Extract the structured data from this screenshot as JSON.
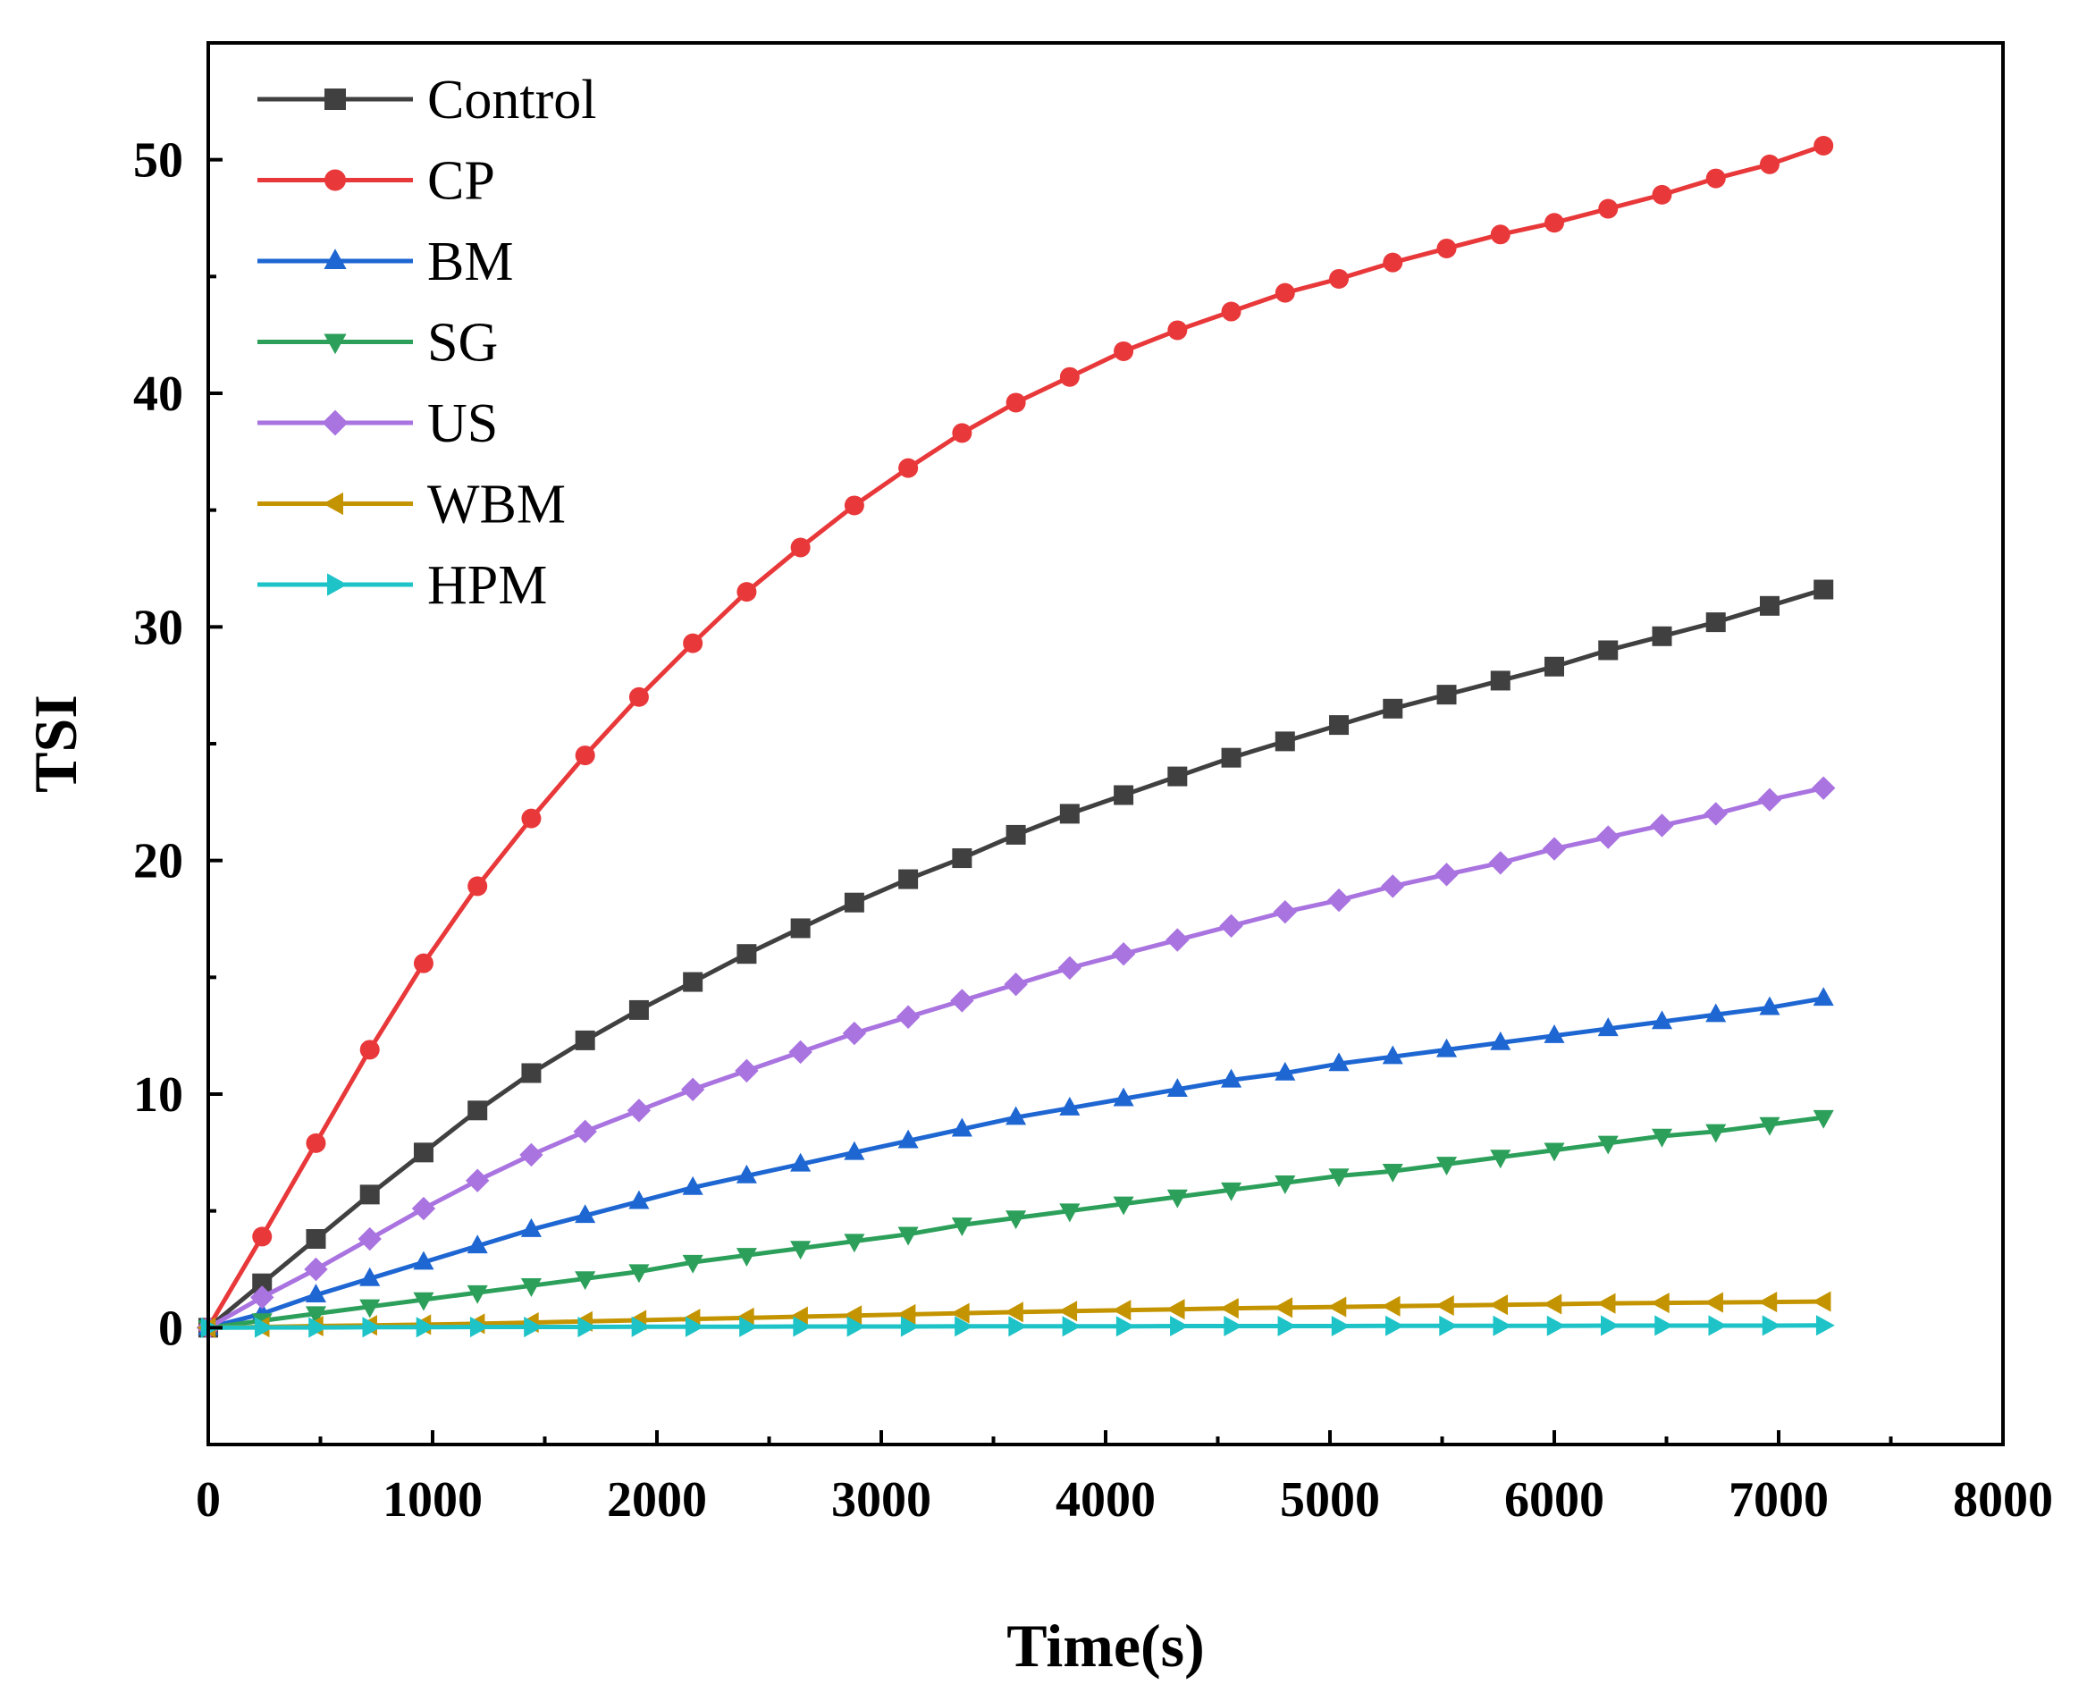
{
  "chart_data": {
    "type": "line",
    "title": "",
    "xlabel": "Time(s)",
    "ylabel": "TSI",
    "xlim": [
      0,
      8000
    ],
    "ylim": [
      -5,
      55
    ],
    "xticks": [
      0,
      1000,
      2000,
      3000,
      4000,
      5000,
      6000,
      7000,
      8000
    ],
    "yticks": [
      0,
      10,
      20,
      30,
      40,
      50
    ],
    "grid": false,
    "legend_position": "top-left",
    "x": [
      0,
      240,
      480,
      720,
      960,
      1200,
      1440,
      1680,
      1920,
      2160,
      2400,
      2640,
      2880,
      3120,
      3360,
      3600,
      3840,
      4080,
      4320,
      4560,
      4800,
      5040,
      5280,
      5520,
      5760,
      6000,
      6240,
      6480,
      6720,
      6960,
      7200
    ],
    "series": [
      {
        "name": "Control",
        "color": "#404040",
        "marker": "square",
        "values": [
          0,
          1.9,
          3.8,
          5.7,
          7.5,
          9.3,
          10.9,
          12.3,
          13.6,
          14.8,
          16.0,
          17.1,
          18.2,
          19.2,
          20.1,
          21.1,
          22.0,
          22.8,
          23.6,
          24.4,
          25.1,
          25.8,
          26.5,
          27.1,
          27.7,
          28.3,
          29.0,
          29.6,
          30.2,
          30.9,
          31.6
        ]
      },
      {
        "name": "CP",
        "color": "#e8383a",
        "marker": "circle",
        "values": [
          0,
          3.9,
          7.9,
          11.9,
          15.6,
          18.9,
          21.8,
          24.5,
          27.0,
          29.3,
          31.5,
          33.4,
          35.2,
          36.8,
          38.3,
          39.6,
          40.7,
          41.8,
          42.7,
          43.5,
          44.3,
          44.9,
          45.6,
          46.2,
          46.8,
          47.3,
          47.9,
          48.5,
          49.2,
          49.8,
          50.6
        ]
      },
      {
        "name": "BM",
        "color": "#1e66d2",
        "marker": "triangle-up",
        "values": [
          0,
          0.6,
          1.4,
          2.1,
          2.8,
          3.5,
          4.2,
          4.8,
          5.4,
          6.0,
          6.5,
          7.0,
          7.5,
          8.0,
          8.5,
          9.0,
          9.4,
          9.8,
          10.2,
          10.6,
          10.9,
          11.3,
          11.6,
          11.9,
          12.2,
          12.5,
          12.8,
          13.1,
          13.4,
          13.7,
          14.1
        ]
      },
      {
        "name": "SG",
        "color": "#2ca05a",
        "marker": "triangle-down",
        "values": [
          0,
          0.3,
          0.6,
          0.9,
          1.2,
          1.5,
          1.8,
          2.1,
          2.4,
          2.8,
          3.1,
          3.4,
          3.7,
          4.0,
          4.4,
          4.7,
          5.0,
          5.3,
          5.6,
          5.9,
          6.2,
          6.5,
          6.7,
          7.0,
          7.3,
          7.6,
          7.9,
          8.2,
          8.4,
          8.7,
          9.0
        ]
      },
      {
        "name": "US",
        "color": "#a973e0",
        "marker": "diamond",
        "values": [
          0,
          1.3,
          2.5,
          3.8,
          5.1,
          6.3,
          7.4,
          8.4,
          9.3,
          10.2,
          11.0,
          11.8,
          12.6,
          13.3,
          14.0,
          14.7,
          15.4,
          16.0,
          16.6,
          17.2,
          17.8,
          18.3,
          18.9,
          19.4,
          19.9,
          20.5,
          21.0,
          21.5,
          22.0,
          22.6,
          23.1
        ]
      },
      {
        "name": "WBM",
        "color": "#c49400",
        "marker": "triangle-left",
        "values": [
          0,
          0.03,
          0.07,
          0.1,
          0.13,
          0.17,
          0.22,
          0.27,
          0.32,
          0.37,
          0.42,
          0.47,
          0.52,
          0.57,
          0.62,
          0.67,
          0.71,
          0.75,
          0.79,
          0.83,
          0.86,
          0.89,
          0.92,
          0.95,
          0.98,
          1.01,
          1.04,
          1.06,
          1.08,
          1.1,
          1.12
        ]
      },
      {
        "name": "HPM",
        "color": "#1ec3c8",
        "marker": "triangle-right",
        "values": [
          0,
          0.01,
          0.01,
          0.02,
          0.02,
          0.03,
          0.03,
          0.03,
          0.04,
          0.04,
          0.04,
          0.05,
          0.05,
          0.05,
          0.06,
          0.06,
          0.06,
          0.06,
          0.07,
          0.07,
          0.07,
          0.07,
          0.08,
          0.08,
          0.08,
          0.08,
          0.09,
          0.09,
          0.09,
          0.09,
          0.1
        ]
      }
    ]
  }
}
